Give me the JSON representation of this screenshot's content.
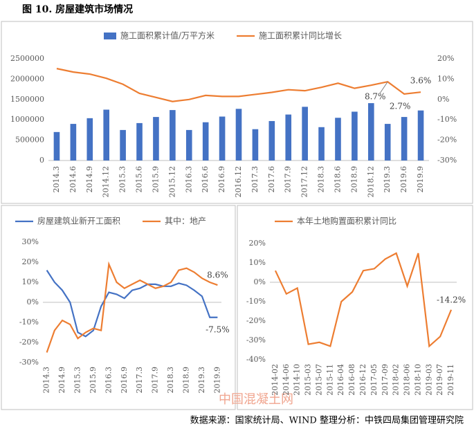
{
  "title": "图 10. 房屋建筑市场情况",
  "source": "数据来源：国家统计局、WIND   整理分析：中铁四局集团管理研究院",
  "watermark": "中国混凝土网",
  "chart_data": [
    {
      "type": "combo",
      "categories": [
        "2014.3",
        "2014.6",
        "2014.9",
        "2014.12",
        "2015.3",
        "2015.6",
        "2015.9",
        "2015.12",
        "2016.3",
        "2016.6",
        "2016.9",
        "2016.12",
        "2017.3",
        "2017.6",
        "2017.9",
        "2017.12",
        "2018.3",
        "2018.6",
        "2018.9",
        "2018.12",
        "2019.3",
        "2019.6",
        "2019.9"
      ],
      "series": [
        {
          "name": "施工面积累计值/万平方米",
          "color": "#4472c4",
          "kind": "bar",
          "values": [
            700000,
            900000,
            1040000,
            1250000,
            750000,
            920000,
            1070000,
            1240000,
            750000,
            940000,
            1080000,
            1270000,
            770000,
            970000,
            1130000,
            1320000,
            820000,
            1050000,
            1200000,
            1410000,
            900000,
            1070000,
            1230000
          ]
        },
        {
          "name": "施工面积累计同比增长",
          "color": "#ed7d31",
          "kind": "line",
          "axis": "y2",
          "values": [
            15.2,
            13.5,
            12.5,
            10.4,
            7.5,
            3,
            1,
            -1,
            0,
            2,
            1.5,
            1.5,
            2.5,
            3.5,
            4.8,
            4.3,
            6,
            8,
            5.5,
            7,
            8.7,
            2.7,
            3.6
          ],
          "value_labels": [
            null,
            null,
            null,
            null,
            null,
            null,
            null,
            null,
            null,
            null,
            null,
            null,
            null,
            null,
            null,
            null,
            null,
            null,
            null,
            null,
            "8.7%",
            "2.7%",
            "3.6%"
          ]
        }
      ],
      "ylim": [
        0,
        2500000
      ],
      "yticks": [
        0,
        500000,
        1000000,
        1500000,
        2000000,
        2500000
      ],
      "y2lim": [
        -30,
        20
      ],
      "y2ticks": [
        {
          "value": -30,
          "label": "-30%"
        },
        {
          "value": -20,
          "label": "-20%"
        },
        {
          "value": -10,
          "label": "-10%"
        },
        {
          "value": 0,
          "label": "0%"
        },
        {
          "value": 10,
          "label": "10%"
        },
        {
          "value": 20,
          "label": "20%"
        }
      ],
      "legend": "top"
    },
    {
      "type": "line",
      "categories": [
        "2014.3",
        null,
        "2014.9",
        null,
        "2015.3",
        null,
        "2015.9",
        null,
        "2016.3",
        null,
        "2016.9",
        null,
        "2017.3",
        null,
        "2017.9",
        null,
        "2018.3",
        null,
        "2018.9",
        null,
        "2019.3",
        null,
        "2019.9"
      ],
      "series": [
        {
          "name": "房屋建筑业新开工面积",
          "color": "#4472c4",
          "values": [
            16,
            10,
            6,
            0,
            -15,
            -17,
            -14,
            -2,
            5,
            4,
            2,
            6,
            7,
            9,
            9,
            8,
            8,
            9.5,
            8.5,
            6,
            3,
            -7.5,
            -7.5
          ],
          "value_labels": [
            null,
            null,
            null,
            null,
            null,
            null,
            null,
            null,
            null,
            null,
            null,
            null,
            null,
            null,
            null,
            null,
            null,
            null,
            null,
            null,
            null,
            null,
            "-7.5%"
          ]
        },
        {
          "name": "其中：地产",
          "color": "#ed7d31",
          "values": [
            -25,
            -14,
            -9,
            -11,
            -18,
            -15,
            -13,
            -14,
            19,
            10,
            7,
            9,
            11,
            9,
            7,
            8,
            10,
            16,
            17,
            15,
            12,
            10,
            8.6
          ],
          "value_labels": [
            null,
            null,
            null,
            null,
            null,
            null,
            null,
            null,
            null,
            null,
            null,
            null,
            null,
            null,
            null,
            null,
            null,
            null,
            null,
            null,
            null,
            null,
            "8.6%"
          ]
        }
      ],
      "ylim": [
        -30,
        30
      ],
      "yticks": [
        {
          "value": -30,
          "label": "-30%"
        },
        {
          "value": -20,
          "label": "-20%"
        },
        {
          "value": -10,
          "label": "-10%"
        },
        {
          "value": 0,
          "label": "0%"
        },
        {
          "value": 10,
          "label": "10%"
        },
        {
          "value": 20,
          "label": "20%"
        },
        {
          "value": 30,
          "label": "30%"
        }
      ],
      "legend": "top-left"
    },
    {
      "type": "line",
      "categories": [
        "2014-02",
        "2014-06",
        "2014-10",
        "2015-03",
        "2015-07",
        "2015-11",
        "2016-04",
        "2016-08",
        "2016-12",
        "2017-05",
        "2017-09",
        "2018-02",
        "2018-06",
        "2018-10",
        "2019-03",
        "2019-07",
        "2019-11"
      ],
      "series": [
        {
          "name": "本年土地购置面积累计同比",
          "color": "#ed7d31",
          "values": [
            6,
            -6,
            -3,
            -32,
            -31,
            -33,
            -10,
            -5,
            6,
            7,
            12,
            15,
            -2,
            15,
            -33,
            -28,
            -14.2
          ],
          "value_labels": [
            null,
            null,
            null,
            null,
            null,
            null,
            null,
            null,
            null,
            null,
            null,
            null,
            null,
            null,
            null,
            null,
            "-14.2%"
          ]
        }
      ],
      "ylim": [
        -40,
        20
      ],
      "yticks": [
        {
          "value": -40,
          "label": "-40%"
        },
        {
          "value": -30,
          "label": "-30%"
        },
        {
          "value": -20,
          "label": "-20%"
        },
        {
          "value": -10,
          "label": "-10%"
        },
        {
          "value": 0,
          "label": "0%"
        },
        {
          "value": 10,
          "label": "10%"
        },
        {
          "value": 20,
          "label": "20%"
        }
      ],
      "legend": "top-left"
    }
  ]
}
